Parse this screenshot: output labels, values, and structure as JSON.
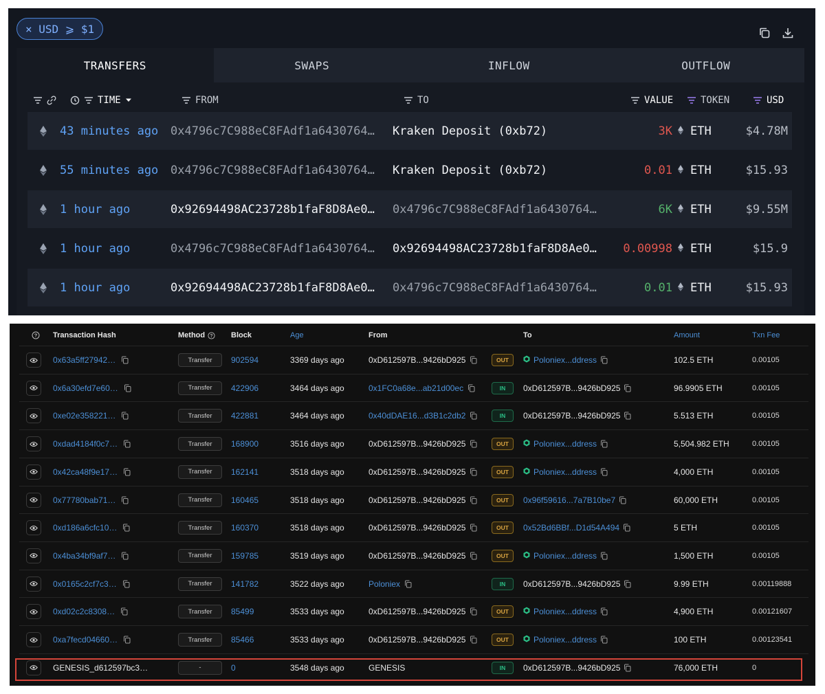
{
  "top": {
    "filter_chip": {
      "label": "× USD ⩾ $1"
    },
    "tabs": [
      "TRANSFERS",
      "SWAPS",
      "INFLOW",
      "OUTFLOW"
    ],
    "headers": {
      "time": "TIME",
      "from": "FROM",
      "to": "TO",
      "value": "VALUE",
      "token": "TOKEN",
      "usd": "USD"
    },
    "rows": [
      {
        "time": "43 minutes ago",
        "from": "0x4796c7C988eC8FAdf1a6430764…",
        "to": "Kraken Deposit (0xb72)",
        "value": "3K",
        "value_kind": "neg",
        "token": "ETH",
        "usd": "$4.78M",
        "from_bright": false,
        "to_bright": true
      },
      {
        "time": "55 minutes ago",
        "from": "0x4796c7C988eC8FAdf1a6430764…",
        "to": "Kraken Deposit (0xb72)",
        "value": "0.01",
        "value_kind": "neg",
        "token": "ETH",
        "usd": "$15.93",
        "from_bright": false,
        "to_bright": true
      },
      {
        "time": "1 hour ago",
        "from": "0x92694498AC23728b1faF8D8Ae0…",
        "to": "0x4796c7C988eC8FAdf1a6430764…",
        "value": "6K",
        "value_kind": "pos",
        "token": "ETH",
        "usd": "$9.55M",
        "from_bright": true,
        "to_bright": false
      },
      {
        "time": "1 hour ago",
        "from": "0x4796c7C988eC8FAdf1a6430764…",
        "to": "0x92694498AC23728b1faF8D8Ae0…",
        "value": "0.00998",
        "value_kind": "neg",
        "token": "ETH",
        "usd": "$15.9",
        "from_bright": false,
        "to_bright": true
      },
      {
        "time": "1 hour ago",
        "from": "0x92694498AC23728b1faF8D8Ae0…",
        "to": "0x4796c7C988eC8FAdf1a6430764…",
        "value": "0.01",
        "value_kind": "pos",
        "token": "ETH",
        "usd": "$15.93",
        "from_bright": true,
        "to_bright": false
      }
    ]
  },
  "bottom": {
    "headers": {
      "hash": "Transaction Hash",
      "method": "Method",
      "block": "Block",
      "age": "Age",
      "from": "From",
      "to": "To",
      "amount": "Amount",
      "fee": "Txn Fee"
    },
    "rows": [
      {
        "hash": "0x63a5ff27942…",
        "method": "Transfer",
        "block": "902594",
        "age": "3369 days ago",
        "from": "0xD612597B...9426bD925",
        "from_link": false,
        "dir": "OUT",
        "to": "Poloniex...ddress",
        "to_link": true,
        "to_contract": true,
        "amount": "102.5 ETH",
        "fee": "0.00105"
      },
      {
        "hash": "0x6a30efd7e60…",
        "method": "Transfer",
        "block": "422906",
        "age": "3464 days ago",
        "from": "0x1FC0a68e...ab21d00ec",
        "from_link": true,
        "dir": "IN",
        "to": "0xD612597B...9426bD925",
        "to_link": false,
        "to_contract": false,
        "amount": "96.9905 ETH",
        "fee": "0.00105"
      },
      {
        "hash": "0xe02e358221…",
        "method": "Transfer",
        "block": "422881",
        "age": "3464 days ago",
        "from": "0x40dDAE16...d3B1c2db2",
        "from_link": true,
        "dir": "IN",
        "to": "0xD612597B...9426bD925",
        "to_link": false,
        "to_contract": false,
        "amount": "5.513 ETH",
        "fee": "0.00105"
      },
      {
        "hash": "0xdad4184f0c7…",
        "method": "Transfer",
        "block": "168900",
        "age": "3516 days ago",
        "from": "0xD612597B...9426bD925",
        "from_link": false,
        "dir": "OUT",
        "to": "Poloniex...ddress",
        "to_link": true,
        "to_contract": true,
        "amount": "5,504.982 ETH",
        "fee": "0.00105"
      },
      {
        "hash": "0x42ca48f9e17…",
        "method": "Transfer",
        "block": "162141",
        "age": "3518 days ago",
        "from": "0xD612597B...9426bD925",
        "from_link": false,
        "dir": "OUT",
        "to": "Poloniex...ddress",
        "to_link": true,
        "to_contract": true,
        "amount": "4,000 ETH",
        "fee": "0.00105"
      },
      {
        "hash": "0x77780bab71…",
        "method": "Transfer",
        "block": "160465",
        "age": "3518 days ago",
        "from": "0xD612597B...9426bD925",
        "from_link": false,
        "dir": "OUT",
        "to": "0x96f59616...7a7B10be7",
        "to_link": true,
        "to_contract": false,
        "amount": "60,000 ETH",
        "fee": "0.00105"
      },
      {
        "hash": "0xd186a6cfc10…",
        "method": "Transfer",
        "block": "160370",
        "age": "3518 days ago",
        "from": "0xD612597B...9426bD925",
        "from_link": false,
        "dir": "OUT",
        "to": "0x52Bd6BBf...D1d54A494",
        "to_link": true,
        "to_contract": false,
        "amount": "5 ETH",
        "fee": "0.00105"
      },
      {
        "hash": "0x4ba34bf9af7…",
        "method": "Transfer",
        "block": "159785",
        "age": "3519 days ago",
        "from": "0xD612597B...9426bD925",
        "from_link": false,
        "dir": "OUT",
        "to": "Poloniex...ddress",
        "to_link": true,
        "to_contract": true,
        "amount": "1,500 ETH",
        "fee": "0.00105"
      },
      {
        "hash": "0x0165c2cf7c3…",
        "method": "Transfer",
        "block": "141782",
        "age": "3522 days ago",
        "from": "Poloniex",
        "from_link": true,
        "dir": "IN",
        "to": "0xD612597B...9426bD925",
        "to_link": false,
        "to_contract": false,
        "amount": "9.99 ETH",
        "fee": "0.00119888"
      },
      {
        "hash": "0xd02c2c8308…",
        "method": "Transfer",
        "block": "85499",
        "age": "3533 days ago",
        "from": "0xD612597B...9426bD925",
        "from_link": false,
        "dir": "OUT",
        "to": "Poloniex...ddress",
        "to_link": true,
        "to_contract": true,
        "amount": "4,900 ETH",
        "fee": "0.00121607"
      },
      {
        "hash": "0xa7fecd04660…",
        "method": "Transfer",
        "block": "85466",
        "age": "3533 days ago",
        "from": "0xD612597B...9426bD925",
        "from_link": false,
        "dir": "OUT",
        "to": "Poloniex...ddress",
        "to_link": true,
        "to_contract": true,
        "amount": "100 ETH",
        "fee": "0.00123541"
      },
      {
        "hash": "GENESIS_d612597bc3…",
        "method": "-",
        "block": "0",
        "age": "3548 days ago",
        "from": "GENESIS",
        "from_link": false,
        "dir": "IN",
        "to": "0xD612597B...9426bD925",
        "to_link": false,
        "to_contract": false,
        "amount": "76,000 ETH",
        "fee": "0",
        "hash_plain": true,
        "no_copy": true
      }
    ]
  }
}
